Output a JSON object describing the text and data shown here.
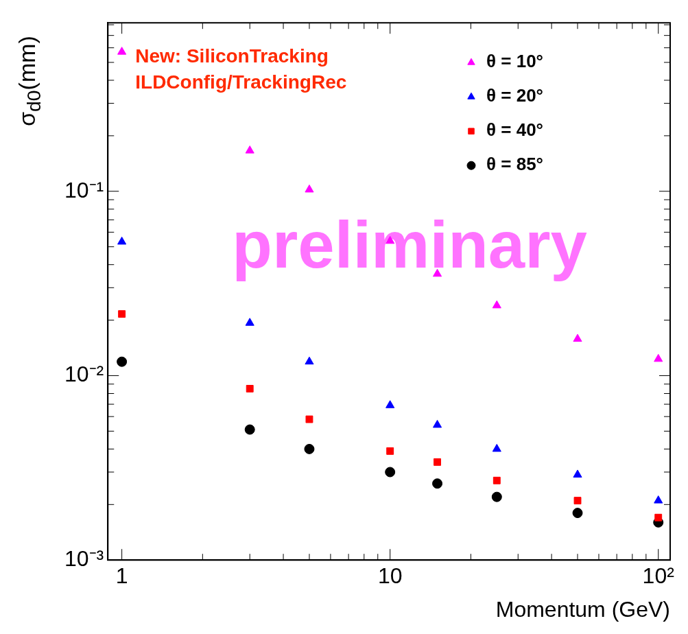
{
  "chart_data": {
    "type": "scatter",
    "xlabel": "Momentum (GeV)",
    "ylabel": "σ$_{d0}$(mm)",
    "log": "xy",
    "grid": false,
    "legend": "top right",
    "xlim": [
      0.887,
      110.7
    ],
    "ylim": [
      0.001,
      0.82
    ],
    "xticks": [
      {
        "value": 1,
        "label": "1"
      },
      {
        "value": 2,
        "label": null
      },
      {
        "value": 3,
        "label": null
      },
      {
        "value": 4,
        "label": null
      },
      {
        "value": 5,
        "label": null
      },
      {
        "value": 6,
        "label": null
      },
      {
        "value": 7,
        "label": null
      },
      {
        "value": 8,
        "label": null
      },
      {
        "value": 9,
        "label": null
      },
      {
        "value": 10,
        "label": "10"
      },
      {
        "value": 20,
        "label": null
      },
      {
        "value": 30,
        "label": null
      },
      {
        "value": 40,
        "label": null
      },
      {
        "value": 50,
        "label": null
      },
      {
        "value": 60,
        "label": null
      },
      {
        "value": 70,
        "label": null
      },
      {
        "value": 80,
        "label": null
      },
      {
        "value": 90,
        "label": null
      },
      {
        "value": 100,
        "label": "10²"
      }
    ],
    "yticks": [
      {
        "value": 0.001,
        "label": "10⁻³"
      },
      {
        "value": 0.002,
        "label": null
      },
      {
        "value": 0.003,
        "label": null
      },
      {
        "value": 0.004,
        "label": null
      },
      {
        "value": 0.005,
        "label": null
      },
      {
        "value": 0.006,
        "label": null
      },
      {
        "value": 0.007,
        "label": null
      },
      {
        "value": 0.008,
        "label": null
      },
      {
        "value": 0.009,
        "label": null
      },
      {
        "value": 0.01,
        "label": "10⁻²"
      },
      {
        "value": 0.02,
        "label": null
      },
      {
        "value": 0.03,
        "label": null
      },
      {
        "value": 0.04,
        "label": null
      },
      {
        "value": 0.05,
        "label": null
      },
      {
        "value": 0.06,
        "label": null
      },
      {
        "value": 0.07,
        "label": null
      },
      {
        "value": 0.08,
        "label": null
      },
      {
        "value": 0.09,
        "label": null
      },
      {
        "value": 0.1,
        "label": "10⁻¹"
      },
      {
        "value": 0.2,
        "label": null
      },
      {
        "value": 0.3,
        "label": null
      },
      {
        "value": 0.4,
        "label": null
      },
      {
        "value": 0.5,
        "label": null
      },
      {
        "value": 0.6,
        "label": null
      },
      {
        "value": 0.7,
        "label": null
      },
      {
        "value": 0.8,
        "label": null
      }
    ],
    "x": [
      1,
      3,
      5,
      10,
      15,
      25,
      50,
      100
    ],
    "series": [
      {
        "name": "θ = 10°",
        "color": "#ff00ff",
        "marker": "triangle",
        "values": [
          0.57,
          0.166,
          0.102,
          0.0537,
          0.0356,
          0.024,
          0.0158,
          0.0123
        ]
      },
      {
        "name": "θ = 20°",
        "color": "#0000ff",
        "marker": "triangle",
        "values": [
          0.0532,
          0.0193,
          0.0119,
          0.0069,
          0.0054,
          0.004,
          0.0029,
          0.0021
        ]
      },
      {
        "name": "θ = 40°",
        "color": "#ff0000",
        "marker": "square",
        "values": [
          0.0216,
          0.0085,
          0.0058,
          0.0039,
          0.0034,
          0.0027,
          0.0021,
          0.0017
        ]
      },
      {
        "name": "θ = 85°",
        "color": "#000000",
        "marker": "circle",
        "values": [
          0.0119,
          0.0051,
          0.004,
          0.003,
          0.0026,
          0.0022,
          0.0018,
          0.0016
        ]
      }
    ],
    "annotations": [
      "New: SiliconTracking",
      "ILDConfig/TrackingRec",
      "preliminary"
    ]
  }
}
